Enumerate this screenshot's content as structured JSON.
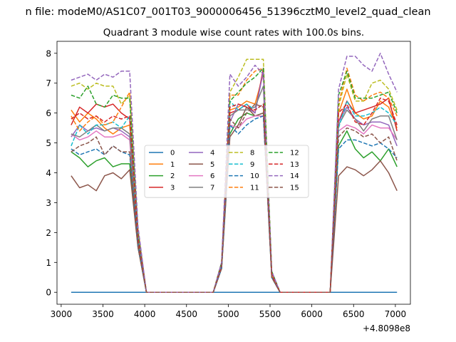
{
  "chart_data": {
    "type": "line",
    "suptitle": "n file: modeM0/AS1C07_001T03_9000006456_51396cztM0_level2_quad_clean",
    "title": "Quadrant 3 module wise count rates with 100.0s bins.",
    "xlabel": "",
    "ylabel": "",
    "offset_label": "+4.8098e8",
    "xlim": [
      2950,
      7180
    ],
    "ylim": [
      -0.4,
      8.4
    ],
    "xticks": [
      3000,
      3500,
      4000,
      4500,
      5000,
      5500,
      6000,
      6500,
      7000
    ],
    "yticks": [
      0,
      1,
      2,
      3,
      4,
      5,
      6,
      7,
      8
    ],
    "grid": false,
    "legend": {
      "position": "center",
      "columns": 4
    },
    "x": [
      3120,
      3220,
      3320,
      3420,
      3520,
      3620,
      3720,
      3820,
      3920,
      4020,
      4120,
      4220,
      4320,
      4420,
      4520,
      4620,
      4720,
      4820,
      4920,
      5020,
      5120,
      5220,
      5320,
      5420,
      5520,
      5620,
      5720,
      5820,
      5920,
      6020,
      6120,
      6220,
      6320,
      6420,
      6520,
      6620,
      6720,
      6820,
      6920,
      7020
    ],
    "series": [
      {
        "name": "0",
        "color": "#1f77b4",
        "dash": "solid",
        "values": [
          0,
          0,
          0,
          0,
          0,
          0,
          0,
          0,
          0,
          0,
          0,
          0,
          0,
          0,
          0,
          0,
          0,
          0,
          0,
          0,
          0,
          0,
          0,
          0,
          0,
          0,
          0,
          0,
          0,
          0,
          0,
          0,
          0,
          0,
          0,
          0,
          0,
          0,
          0,
          0
        ]
      },
      {
        "name": "1",
        "color": "#ff7f0e",
        "dash": "solid",
        "values": [
          6.1,
          5.7,
          6.0,
          5.8,
          5.5,
          5.3,
          5.5,
          5.6,
          1.8,
          0,
          0,
          0,
          0,
          0,
          0,
          0,
          0,
          0,
          0.9,
          6.1,
          6.2,
          6.4,
          6.3,
          7.3,
          0.6,
          0,
          0,
          0,
          0,
          0,
          0,
          0,
          6.0,
          6.8,
          6.0,
          5.8,
          5.9,
          6.4,
          6.2,
          5.5
        ]
      },
      {
        "name": "2",
        "color": "#2ca02c",
        "dash": "solid",
        "values": [
          4.7,
          4.5,
          4.2,
          4.4,
          4.5,
          4.2,
          4.3,
          4.3,
          1.5,
          0,
          0,
          0,
          0,
          0,
          0,
          0,
          0,
          0,
          0.8,
          5.3,
          5.8,
          6.0,
          5.9,
          6.0,
          0.5,
          0,
          0,
          0,
          0,
          0,
          0,
          0,
          4.9,
          5.4,
          4.8,
          4.5,
          4.7,
          4.4,
          4.8,
          4.2
        ]
      },
      {
        "name": "3",
        "color": "#d62728",
        "dash": "solid",
        "values": [
          5.6,
          6.2,
          6.0,
          6.3,
          6.2,
          6.3,
          6.0,
          5.8,
          1.9,
          0,
          0,
          0,
          0,
          0,
          0,
          0,
          0,
          0,
          0.9,
          6.0,
          6.1,
          6.3,
          6.0,
          7.5,
          0.6,
          0,
          0,
          0,
          0,
          0,
          0,
          0,
          5.7,
          6.4,
          6.0,
          6.1,
          6.2,
          6.3,
          6.5,
          5.4
        ]
      },
      {
        "name": "4",
        "color": "#9467bd",
        "dash": "solid",
        "values": [
          5.2,
          5.6,
          5.4,
          5.5,
          5.4,
          5.5,
          5.4,
          5.2,
          1.7,
          0,
          0,
          0,
          0,
          0,
          0,
          0,
          0,
          0,
          0.9,
          5.7,
          6.3,
          6.2,
          6.0,
          7.4,
          0.6,
          0,
          0,
          0,
          0,
          0,
          0,
          0,
          5.7,
          6.2,
          5.8,
          5.6,
          5.7,
          5.7,
          5.6,
          4.9
        ]
      },
      {
        "name": "5",
        "color": "#8c564b",
        "dash": "solid",
        "values": [
          3.9,
          3.5,
          3.6,
          3.4,
          3.9,
          4.0,
          3.8,
          4.1,
          1.5,
          0,
          0,
          0,
          0,
          0,
          0,
          0,
          0,
          0,
          0.8,
          5.2,
          5.6,
          6.2,
          5.9,
          6.0,
          0.5,
          0,
          0,
          0,
          0,
          0,
          0,
          0,
          3.9,
          4.2,
          4.1,
          3.9,
          4.1,
          4.4,
          4.0,
          3.4
        ]
      },
      {
        "name": "6",
        "color": "#e377c2",
        "dash": "solid",
        "values": [
          5.3,
          5.1,
          5.2,
          5.4,
          5.2,
          5.2,
          5.3,
          5.1,
          1.6,
          0,
          0,
          0,
          0,
          0,
          0,
          0,
          0,
          0,
          0.9,
          5.6,
          5.5,
          5.8,
          5.9,
          5.9,
          0.6,
          0,
          0,
          0,
          0,
          0,
          0,
          0,
          5.4,
          5.6,
          5.5,
          5.3,
          5.6,
          5.5,
          5.5,
          5.1
        ]
      },
      {
        "name": "7",
        "color": "#7f7f7f",
        "dash": "solid",
        "values": [
          5.3,
          5.2,
          5.4,
          5.6,
          5.4,
          5.5,
          5.5,
          5.3,
          1.7,
          0,
          0,
          0,
          0,
          0,
          0,
          0,
          0,
          0,
          0.9,
          5.9,
          6.1,
          6.1,
          6.2,
          6.9,
          0.6,
          0,
          0,
          0,
          0,
          0,
          0,
          0,
          5.6,
          6.1,
          5.8,
          5.4,
          5.8,
          5.9,
          5.9,
          5.1
        ]
      },
      {
        "name": "8",
        "color": "#bcbd22",
        "dash": "dashed",
        "values": [
          6.9,
          7.0,
          6.8,
          7.0,
          6.9,
          6.9,
          6.3,
          6.6,
          2.0,
          0,
          0,
          0,
          0,
          0,
          0,
          0,
          0,
          0,
          1.0,
          6.7,
          7.2,
          7.8,
          7.8,
          7.8,
          0.7,
          0,
          0,
          0,
          0,
          0,
          0,
          0,
          6.2,
          7.3,
          6.4,
          6.4,
          7.0,
          7.1,
          6.8,
          6.1
        ]
      },
      {
        "name": "9",
        "color": "#17becf",
        "dash": "dashed",
        "values": [
          4.9,
          5.6,
          5.3,
          5.6,
          5.6,
          5.7,
          5.5,
          5.9,
          1.8,
          0,
          0,
          0,
          0,
          0,
          0,
          0,
          0,
          0,
          0.9,
          6.4,
          6.1,
          6.3,
          6.1,
          6.3,
          0.6,
          0,
          0,
          0,
          0,
          0,
          0,
          0,
          5.5,
          6.4,
          5.9,
          5.9,
          6.0,
          6.2,
          6.0,
          5.6
        ]
      },
      {
        "name": "10",
        "color": "#1f77b4",
        "dash": "dashed",
        "values": [
          4.8,
          4.6,
          4.7,
          4.8,
          4.6,
          4.9,
          4.7,
          4.6,
          1.6,
          0,
          0,
          0,
          0,
          0,
          0,
          0,
          0,
          0,
          0.8,
          5.6,
          5.3,
          5.6,
          5.8,
          5.9,
          0.5,
          0,
          0,
          0,
          0,
          0,
          0,
          0,
          4.8,
          5.1,
          5.1,
          5.0,
          4.9,
          5.0,
          4.8,
          4.5
        ]
      },
      {
        "name": "11",
        "color": "#ff7f0e",
        "dash": "dashed",
        "values": [
          5.9,
          5.4,
          5.7,
          5.9,
          5.6,
          5.7,
          6.2,
          6.7,
          2.1,
          0,
          0,
          0,
          0,
          0,
          0,
          0,
          0,
          0,
          1.0,
          6.6,
          6.6,
          7.1,
          7.4,
          7.5,
          0.6,
          0,
          0,
          0,
          0,
          0,
          0,
          0,
          6.3,
          7.5,
          6.6,
          6.4,
          6.6,
          6.7,
          6.5,
          5.9
        ]
      },
      {
        "name": "12",
        "color": "#2ca02c",
        "dash": "dashed",
        "values": [
          6.6,
          6.5,
          6.9,
          6.3,
          6.2,
          6.6,
          6.5,
          6.5,
          2.0,
          0,
          0,
          0,
          0,
          0,
          0,
          0,
          0,
          0,
          1.0,
          6.4,
          6.7,
          7.0,
          7.2,
          7.5,
          0.7,
          0,
          0,
          0,
          0,
          0,
          0,
          0,
          6.6,
          7.4,
          6.5,
          6.5,
          6.5,
          6.6,
          6.7,
          6.0
        ]
      },
      {
        "name": "13",
        "color": "#d62728",
        "dash": "dashed",
        "values": [
          5.8,
          6.0,
          5.8,
          5.9,
          5.7,
          5.9,
          5.8,
          5.9,
          1.8,
          0,
          0,
          0,
          0,
          0,
          0,
          0,
          0,
          0,
          0.9,
          6.2,
          6.3,
          6.2,
          6.1,
          6.3,
          0.6,
          0,
          0,
          0,
          0,
          0,
          0,
          0,
          6.0,
          6.3,
          5.7,
          5.6,
          6.0,
          6.5,
          6.4,
          5.6
        ]
      },
      {
        "name": "14",
        "color": "#9467bd",
        "dash": "dashed",
        "values": [
          7.1,
          7.2,
          7.3,
          7.1,
          7.3,
          7.2,
          7.4,
          7.4,
          2.2,
          0,
          0,
          0,
          0,
          0,
          0,
          0,
          0,
          0,
          1.0,
          7.3,
          6.9,
          7.2,
          7.6,
          7.3,
          0.7,
          0,
          0,
          0,
          0,
          0,
          0,
          0,
          6.8,
          7.9,
          7.9,
          7.6,
          7.4,
          8.0,
          7.3,
          6.7
        ]
      },
      {
        "name": "15",
        "color": "#8c564b",
        "dash": "dashed",
        "values": [
          4.7,
          4.9,
          5.0,
          5.2,
          4.6,
          4.9,
          4.7,
          4.7,
          1.6,
          0,
          0,
          0,
          0,
          0,
          0,
          0,
          0,
          0,
          0.8,
          5.8,
          5.5,
          6.0,
          6.3,
          6.2,
          0.5,
          0,
          0,
          0,
          0,
          0,
          0,
          0,
          5.2,
          5.5,
          5.4,
          5.2,
          5.3,
          5.0,
          5.2,
          4.4
        ]
      }
    ]
  }
}
